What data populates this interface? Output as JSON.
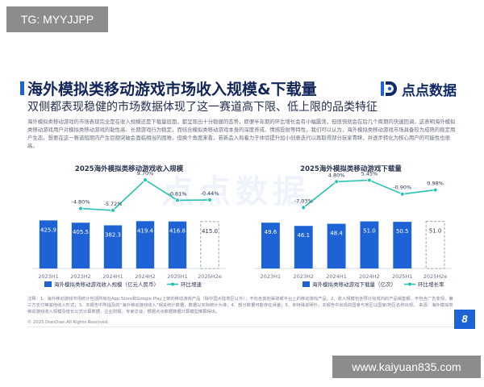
{
  "badge_top": "TG: MYYJJPP",
  "badge_bottom": "www.kaiyuan835.com",
  "header": {
    "title": "海外模拟类移动游戏市场收入规模&下载量",
    "subtitle": "双侧都表现稳健的市场数据体现了这一赛道高下限、低上限的品类特征"
  },
  "brand": {
    "name": "点点数据",
    "accent": "#1e63d6"
  },
  "watermark": "点点数据",
  "description": "海外模拟类移动游戏的市场表现完全是在收入规模还是下载量层面，都呈现出十分稳健的态势，即便半年期的环比增长会有小幅震荡，但很快就会在后几个周期内快速回调，这表明海外模拟类移动游戏用户对模拟类移动游戏的黏性高、长期游戏行为稳定，而结合模拟类移动游戏本身的深度养成、情感投射等特性，我们可以认为，海外模拟类移动游戏市场具备较为成熟的稳定用户生态，想要在这一赛道短期内产生巨额突破会面临相当的困难，但换个角度来看，若新品入局着力于体验提升加小创意迭代以再取得部分玩家青睐，并逐步转化为核心用户的可能性也很高。",
  "notes": "注释：1、海外移动游戏市场统计包括所有在App Store和Google Play上架的移动游戏产品（除中国大陆地区以外）；不包含其他渠道或平台上的移动游戏产品；2、收入规模包含预计完成内的产品销售额，不包含广告变现，第三方支付等其他收入形式；3、本报告中所提及的“海外移动游戏收入”相关统计数据，数据以实际统计为准；4、部分数据可能存在误差；5、未特殊说明外，本报告中出现的国家与地区以国家/地区名称出现。 来源：海外模拟类移动游戏收入规模及增长公式计算数据，企业财报，专家访谈，根据点点数据数据计算模型推算得出。",
  "copyright": "© 2025 DianDian.All Rights Reserved.",
  "page_number": "8",
  "colors": {
    "bar": "#1e63d6",
    "forecast_fill": "#ffffff",
    "forecast_stroke": "#9aa3b2",
    "line": "#27c1b4",
    "label": "#2a3350"
  },
  "chart_data": [
    {
      "type": "bar",
      "title": "2025海外模拟类移动游戏收入规模",
      "categories": [
        "2023H1",
        "2023H2",
        "2024H1",
        "2024H2",
        "2025H1",
        "2025H2e"
      ],
      "series": [
        {
          "name": "海外模拟类移动游戏收入规模（亿元人民币）",
          "kind": "bar",
          "values": [
            425.9,
            405.5,
            382.3,
            419.4,
            416.8,
            415.0
          ]
        },
        {
          "name": "环比增速",
          "kind": "line",
          "values": [
            null,
            -4.8,
            -5.72,
            9.7,
            -0.61,
            -0.44
          ],
          "labels": [
            "",
            "-4.80%",
            "-5.72%",
            "9.70%",
            "-0.61%",
            "-0.44%"
          ]
        }
      ],
      "forecast_index": 5
    },
    {
      "type": "bar",
      "title": "2025海外模拟类移动游戏下载量",
      "categories": [
        "2023H1",
        "2023H2",
        "2024H1",
        "2024H2",
        "2025H1",
        "2025H2e"
      ],
      "series": [
        {
          "name": "海外模拟类移动游戏下载量（亿次）",
          "kind": "bar",
          "values": [
            49.6,
            46.1,
            48.4,
            51.0,
            50.5,
            51.0
          ]
        },
        {
          "name": "环比增长率",
          "kind": "line",
          "values": [
            null,
            -7.03,
            4.8,
            5.45,
            -0.9,
            0.98
          ],
          "labels": [
            "",
            "-7.03%",
            "4.80%",
            "5.45%",
            "-0.90%",
            "0.98%"
          ]
        }
      ],
      "forecast_index": 5
    }
  ]
}
